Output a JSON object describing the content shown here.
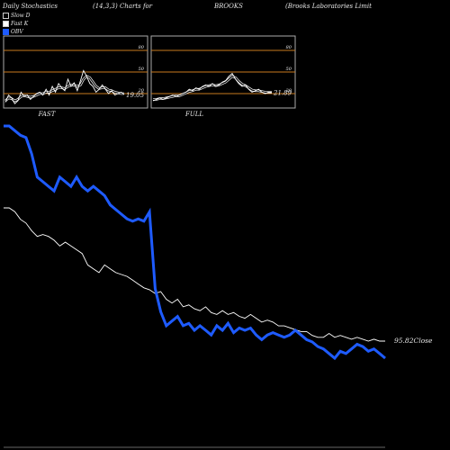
{
  "header": {
    "title": "Daily Stochastics",
    "params": "(14,3,3) Charts for",
    "symbol": "BROOKS",
    "company": "(Brooks Laboratories Limit"
  },
  "legend": [
    {
      "label": "Slow D",
      "color": "#000000",
      "border": "#cccccc"
    },
    {
      "label": "Fast K",
      "color": "#ffffff",
      "border": "#cccccc"
    },
    {
      "label": "OBV",
      "color": "#1e5bff",
      "border": "#1e5bff"
    }
  ],
  "colors": {
    "obv": "#1e5bff",
    "close": "#ffffff",
    "level_line": "#c97a1e",
    "panel_border": "#aaaaaa"
  },
  "chart_data": [
    {
      "type": "line",
      "title": "FAST",
      "ylim": [
        0,
        100
      ],
      "y_ticks": [
        20,
        50,
        80
      ],
      "reference_lines": [
        20,
        50,
        80
      ],
      "value_label": "19.05",
      "series": [
        {
          "name": "Fast K",
          "values": [
            8,
            18,
            14,
            6,
            10,
            22,
            16,
            18,
            12,
            16,
            20,
            22,
            18,
            26,
            18,
            30,
            22,
            34,
            28,
            24,
            40,
            30,
            35,
            24,
            38,
            52,
            44,
            34,
            30,
            22,
            26,
            32,
            26,
            20,
            24,
            18,
            20,
            22,
            19
          ]
        },
        {
          "name": "Slow D",
          "values": [
            10,
            14,
            13,
            10,
            12,
            16,
            17,
            16,
            15,
            16,
            18,
            20,
            20,
            22,
            22,
            24,
            26,
            28,
            28,
            27,
            30,
            32,
            32,
            30,
            32,
            40,
            44,
            42,
            36,
            30,
            27,
            28,
            28,
            25,
            24,
            22,
            21,
            20,
            20
          ]
        }
      ]
    },
    {
      "type": "line",
      "title": "FULL",
      "ylim": [
        0,
        100
      ],
      "y_ticks": [
        20,
        50,
        80
      ],
      "reference_lines": [
        20,
        50,
        80
      ],
      "value_label": "21.89",
      "series": [
        {
          "name": "Fast K",
          "values": [
            10,
            12,
            14,
            12,
            14,
            16,
            18,
            16,
            18,
            20,
            22,
            26,
            24,
            28,
            26,
            30,
            32,
            30,
            34,
            30,
            32,
            36,
            38,
            44,
            48,
            40,
            34,
            30,
            32,
            26,
            22,
            24,
            26,
            22,
            20,
            22,
            22
          ]
        },
        {
          "name": "Slow D",
          "values": [
            12,
            12,
            13,
            13,
            14,
            15,
            16,
            17,
            17,
            19,
            21,
            23,
            24,
            26,
            26,
            28,
            30,
            31,
            32,
            31,
            32,
            34,
            36,
            40,
            44,
            42,
            37,
            33,
            31,
            28,
            25,
            24,
            24,
            23,
            22,
            22,
            22
          ]
        }
      ]
    },
    {
      "type": "line",
      "title": "",
      "value_label": "95.82",
      "value_suffix": "Close",
      "series": [
        {
          "name": "OBV",
          "values": [
            100,
            100,
            98,
            96,
            95,
            88,
            78,
            76,
            74,
            72,
            78,
            76,
            74,
            78,
            74,
            72,
            74,
            72,
            70,
            66,
            64,
            62,
            60,
            59,
            60,
            59,
            63,
            30,
            20,
            14,
            16,
            18,
            14,
            15,
            12,
            14,
            12,
            10,
            14,
            12,
            15,
            11,
            13,
            12,
            13,
            10,
            8,
            10,
            11,
            10,
            9,
            10,
            12,
            10,
            8,
            7,
            5,
            4,
            2,
            0,
            3,
            2,
            4,
            6,
            5,
            3,
            4,
            2,
            0
          ]
        },
        {
          "name": "Close",
          "values": [
            100,
            100,
            98,
            94,
            92,
            88,
            85,
            86,
            85,
            83,
            80,
            82,
            80,
            78,
            76,
            70,
            68,
            66,
            70,
            68,
            66,
            65,
            64,
            62,
            60,
            58,
            57,
            55,
            56,
            52,
            50,
            52,
            48,
            49,
            47,
            46,
            48,
            45,
            44,
            46,
            44,
            45,
            43,
            42,
            44,
            42,
            40,
            41,
            40,
            38,
            38,
            37,
            36,
            35,
            35,
            33,
            32,
            32,
            34,
            32,
            33,
            32,
            31,
            32,
            31,
            30,
            31,
            30,
            30
          ]
        }
      ]
    }
  ]
}
